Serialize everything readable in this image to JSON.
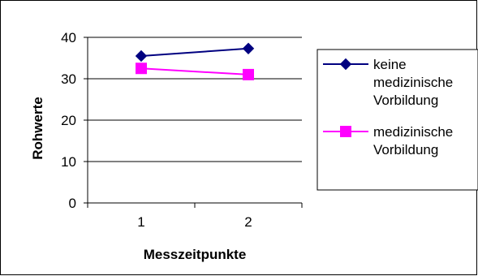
{
  "chart_data": {
    "type": "line",
    "categories": [
      "1",
      "2"
    ],
    "xlabel": "Messzeitpunkte",
    "ylabel": "Rohwerte",
    "ylim": [
      0,
      40
    ],
    "yticks": [
      0,
      10,
      20,
      30,
      40
    ],
    "grid": true,
    "legend_position": "right",
    "series": [
      {
        "name": "keine medizinische Vorbildung",
        "name_lines": [
          "keine",
          "medizinische",
          "Vorbildung"
        ],
        "values": [
          35.5,
          37.3
        ],
        "color": "#000080",
        "marker": "diamond"
      },
      {
        "name": "medizinische Vorbildung",
        "name_lines": [
          "medizinische",
          "Vorbildung"
        ],
        "values": [
          32.5,
          31.0
        ],
        "color": "#FF00FF",
        "marker": "square"
      }
    ]
  }
}
